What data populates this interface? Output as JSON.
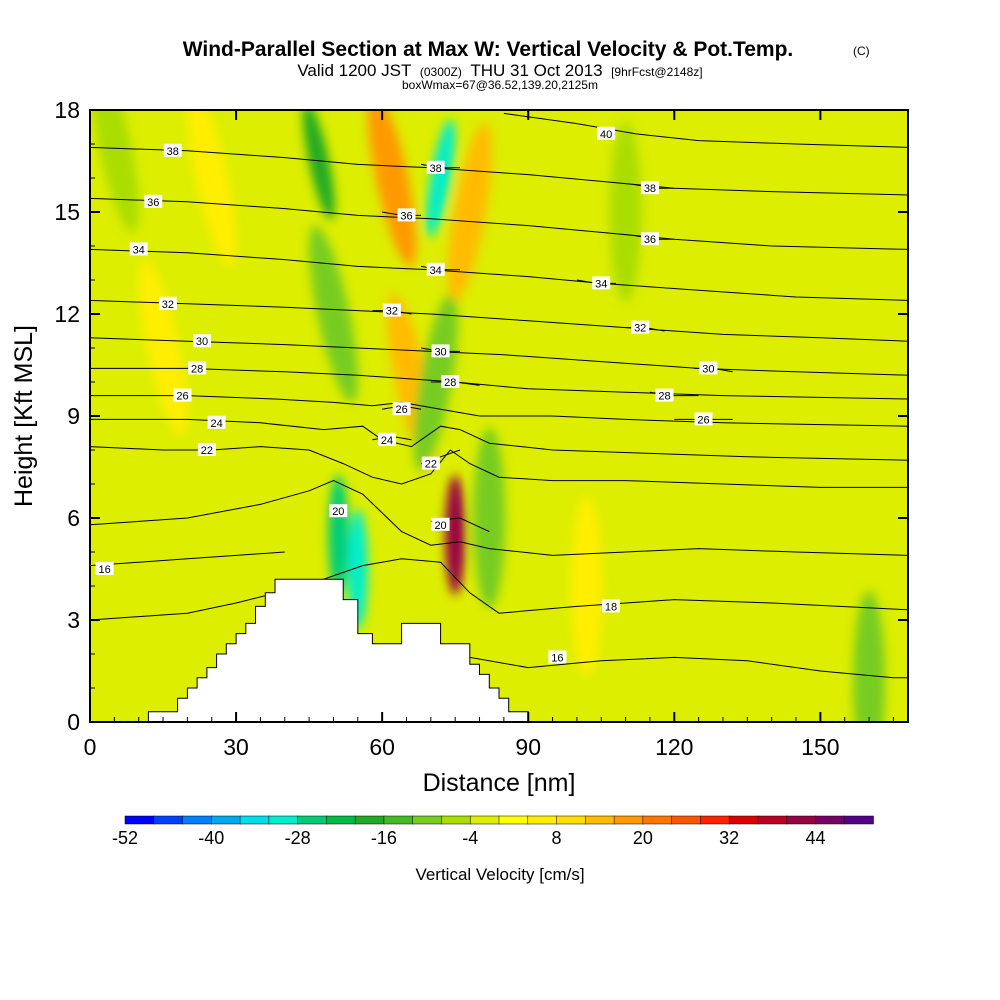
{
  "chart_data": {
    "type": "heatmap",
    "title": "Wind-Parallel Section at Max W: Vertical Velocity & Pot.Temp.",
    "title_mark": "(C)",
    "subtitle": {
      "part1": "Valid 1200 JST",
      "part2": "(0300Z)",
      "part3": "THU 31 Oct 2013",
      "part4": "[9hrFcst@2148z]"
    },
    "subtitle2": "boxWmax=67@36.52,139.20,2125m",
    "xlabel": "Distance [nm]",
    "ylabel": "Height [Kft MSL]",
    "xlim": [
      0,
      168
    ],
    "ylim": [
      0,
      18
    ],
    "x_ticks": [
      "0",
      "30",
      "60",
      "90",
      "120",
      "150"
    ],
    "x_tick_values": [
      0,
      30,
      60,
      90,
      120,
      150
    ],
    "y_ticks": [
      "0",
      "3",
      "6",
      "9",
      "12",
      "15",
      "18"
    ],
    "y_tick_values": [
      0,
      3,
      6,
      9,
      12,
      15,
      18
    ],
    "colorbar": {
      "label": "Vertical Velocity [cm/s]",
      "min": -52,
      "max": 52,
      "step": 4,
      "tick_labels": [
        "-52",
        "-40",
        "-28",
        "-16",
        "-4",
        "8",
        "20",
        "32",
        "44"
      ],
      "tick_values": [
        -52,
        -40,
        -28,
        -16,
        -4,
        8,
        20,
        32,
        44
      ],
      "colors": [
        "#0000ff",
        "#0040ff",
        "#0080ff",
        "#00aaee",
        "#00ddee",
        "#00eecc",
        "#00cc77",
        "#00bb44",
        "#22aa22",
        "#44bb22",
        "#77cc22",
        "#aadd00",
        "#ddee00",
        "#ffff00",
        "#ffee00",
        "#ffdd00",
        "#ffbb00",
        "#ff9900",
        "#ff7700",
        "#ff5500",
        "#ff2200",
        "#dd0000",
        "#bb0022",
        "#990044",
        "#770066",
        "#550088"
      ]
    },
    "vertical_velocity_features": [
      {
        "x": 47,
        "y": 16.5,
        "w": -20
      },
      {
        "x": 50,
        "y": 12,
        "w": -12
      },
      {
        "x": 51,
        "y": 5.5,
        "w": -28
      },
      {
        "x": 55,
        "y": 4.5,
        "w": -32
      },
      {
        "x": 62,
        "y": 16,
        "w": 16
      },
      {
        "x": 66,
        "y": 10,
        "w": 12
      },
      {
        "x": 72,
        "y": 16,
        "w": -32
      },
      {
        "x": 71,
        "y": 10,
        "w": -12
      },
      {
        "x": 75,
        "y": 5.5,
        "w": 40
      },
      {
        "x": 78,
        "y": 15,
        "w": 12
      },
      {
        "x": 82,
        "y": 6,
        "w": -12
      },
      {
        "x": 110,
        "y": 15,
        "w": -8
      },
      {
        "x": 25,
        "y": 16,
        "w": 8
      },
      {
        "x": 15,
        "y": 11,
        "w": 8
      },
      {
        "x": 5,
        "y": 17,
        "w": -6
      },
      {
        "x": 160,
        "y": 1.2,
        "w": -10
      },
      {
        "x": 102,
        "y": 4,
        "w": 6
      }
    ],
    "terrain_profile": [
      [
        0,
        0
      ],
      [
        12,
        0
      ],
      [
        12,
        0.3
      ],
      [
        18,
        0.3
      ],
      [
        18,
        0.7
      ],
      [
        20,
        0.7
      ],
      [
        20,
        1.0
      ],
      [
        22,
        1.0
      ],
      [
        22,
        1.3
      ],
      [
        24,
        1.3
      ],
      [
        24,
        1.6
      ],
      [
        26,
        1.6
      ],
      [
        26,
        2.0
      ],
      [
        28,
        2.0
      ],
      [
        28,
        2.3
      ],
      [
        30,
        2.3
      ],
      [
        30,
        2.6
      ],
      [
        32,
        2.6
      ],
      [
        32,
        2.9
      ],
      [
        34,
        2.9
      ],
      [
        34,
        3.4
      ],
      [
        36,
        3.4
      ],
      [
        36,
        3.8
      ],
      [
        38,
        3.8
      ],
      [
        38,
        4.2
      ],
      [
        52,
        4.2
      ],
      [
        52,
        3.6
      ],
      [
        55,
        3.6
      ],
      [
        55,
        2.6
      ],
      [
        58,
        2.6
      ],
      [
        58,
        2.3
      ],
      [
        64,
        2.3
      ],
      [
        64,
        2.9
      ],
      [
        72,
        2.9
      ],
      [
        72,
        2.3
      ],
      [
        78,
        2.3
      ],
      [
        78,
        1.7
      ],
      [
        80,
        1.7
      ],
      [
        80,
        1.4
      ],
      [
        82,
        1.4
      ],
      [
        82,
        1.0
      ],
      [
        84,
        1.0
      ],
      [
        84,
        0.7
      ],
      [
        86,
        0.7
      ],
      [
        86,
        0.3
      ],
      [
        90,
        0.3
      ],
      [
        90,
        0.0
      ],
      [
        168,
        0
      ]
    ],
    "theta_contours": [
      {
        "label": "16",
        "pts": [
          [
            0,
            4.6
          ],
          [
            20,
            4.8
          ],
          [
            30,
            4.9
          ],
          [
            40,
            5.0
          ]
        ],
        "lx": 3,
        "ly": 4.5
      },
      {
        "label": "16",
        "pts": [
          [
            78,
            1.9
          ],
          [
            90,
            1.6
          ],
          [
            105,
            1.8
          ],
          [
            120,
            1.9
          ],
          [
            135,
            1.8
          ],
          [
            150,
            1.5
          ],
          [
            165,
            1.3
          ],
          [
            168,
            1.3
          ]
        ],
        "lx": 96,
        "ly": 1.9
      },
      {
        "label": "18",
        "pts": [
          [
            0,
            3.0
          ],
          [
            20,
            3.2
          ],
          [
            30,
            3.5
          ],
          [
            44,
            4.0
          ],
          [
            56,
            4.6
          ],
          [
            64,
            4.8
          ],
          [
            72,
            4.7
          ],
          [
            78,
            3.8
          ],
          [
            84,
            3.2
          ],
          [
            100,
            3.4
          ],
          [
            120,
            3.6
          ],
          [
            140,
            3.5
          ],
          [
            168,
            3.3
          ]
        ],
        "lx": 107,
        "ly": 3.4
      },
      {
        "label": "20",
        "pts": [
          [
            0,
            5.8
          ],
          [
            20,
            6.0
          ],
          [
            35,
            6.4
          ],
          [
            45,
            6.8
          ],
          [
            50,
            7.1
          ],
          [
            56,
            6.7
          ],
          [
            64,
            5.6
          ],
          [
            70,
            5.2
          ],
          [
            76,
            5.3
          ],
          [
            82,
            5.1
          ],
          [
            95,
            4.9
          ],
          [
            110,
            5.0
          ],
          [
            125,
            5.1
          ],
          [
            145,
            5.0
          ],
          [
            168,
            4.9
          ]
        ],
        "lx": 51,
        "ly": 6.2
      },
      {
        "label": "20",
        "pts": [
          [
            70,
            5.9
          ],
          [
            76,
            6.0
          ],
          [
            82,
            5.6
          ]
        ],
        "lx": 72,
        "ly": 5.8
      },
      {
        "label": "22",
        "pts": [
          [
            0,
            8.1
          ],
          [
            15,
            8.0
          ],
          [
            25,
            8.0
          ],
          [
            35,
            8.1
          ],
          [
            45,
            8.0
          ],
          [
            52,
            7.6
          ],
          [
            58,
            7.2
          ],
          [
            64,
            7.0
          ],
          [
            70,
            7.3
          ],
          [
            74,
            8.0
          ],
          [
            78,
            7.6
          ],
          [
            84,
            7.2
          ],
          [
            95,
            7.1
          ],
          [
            110,
            7.1
          ],
          [
            130,
            7.0
          ],
          [
            150,
            6.9
          ],
          [
            168,
            6.9
          ]
        ],
        "lx": 24,
        "ly": 8.0
      },
      {
        "label": "22",
        "pts": [
          [
            68,
            7.6
          ],
          [
            72,
            7.8
          ],
          [
            76,
            8.0
          ]
        ],
        "lx": 70,
        "ly": 7.6
      },
      {
        "label": "24",
        "pts": [
          [
            0,
            8.9
          ],
          [
            20,
            8.9
          ],
          [
            35,
            8.8
          ],
          [
            48,
            8.6
          ],
          [
            56,
            8.7
          ],
          [
            60,
            8.3
          ],
          [
            66,
            8.1
          ],
          [
            72,
            8.7
          ],
          [
            76,
            8.6
          ],
          [
            82,
            8.2
          ],
          [
            95,
            8.0
          ],
          [
            115,
            7.9
          ],
          [
            135,
            7.8
          ],
          [
            168,
            7.7
          ]
        ],
        "lx": 26,
        "ly": 8.8
      },
      {
        "label": "24",
        "pts": [
          [
            58,
            8.3
          ],
          [
            62,
            8.4
          ],
          [
            66,
            8.3
          ]
        ],
        "lx": 61,
        "ly": 8.3
      },
      {
        "label": "26",
        "pts": [
          [
            0,
            9.6
          ],
          [
            20,
            9.6
          ],
          [
            38,
            9.5
          ],
          [
            50,
            9.4
          ],
          [
            58,
            9.3
          ],
          [
            64,
            9.4
          ],
          [
            72,
            9.2
          ],
          [
            80,
            9.0
          ],
          [
            95,
            9.0
          ],
          [
            110,
            8.9
          ],
          [
            130,
            8.8
          ],
          [
            168,
            8.7
          ]
        ],
        "lx": 19,
        "ly": 9.6
      },
      {
        "label": "26",
        "pts": [
          [
            60,
            9.2
          ],
          [
            64,
            9.3
          ],
          [
            68,
            9.2
          ]
        ],
        "lx": 64,
        "ly": 9.2
      },
      {
        "label": "26",
        "pts": [
          [
            120,
            8.9
          ],
          [
            126,
            8.9
          ],
          [
            132,
            8.9
          ]
        ],
        "lx": 126,
        "ly": 8.9
      },
      {
        "label": "28",
        "pts": [
          [
            0,
            10.4
          ],
          [
            20,
            10.4
          ],
          [
            40,
            10.3
          ],
          [
            55,
            10.2
          ],
          [
            65,
            10.1
          ],
          [
            75,
            10.0
          ],
          [
            90,
            9.8
          ],
          [
            110,
            9.7
          ],
          [
            130,
            9.6
          ],
          [
            168,
            9.5
          ]
        ],
        "lx": 22,
        "ly": 10.4
      },
      {
        "label": "28",
        "pts": [
          [
            70,
            10.0
          ],
          [
            75,
            10.0
          ],
          [
            80,
            9.9
          ]
        ],
        "lx": 74,
        "ly": 10.0
      },
      {
        "label": "28",
        "pts": [
          [
            115,
            9.7
          ],
          [
            120,
            9.6
          ],
          [
            125,
            9.6
          ]
        ],
        "lx": 118,
        "ly": 9.6
      },
      {
        "label": "30",
        "pts": [
          [
            0,
            11.3
          ],
          [
            20,
            11.2
          ],
          [
            40,
            11.1
          ],
          [
            55,
            11.0
          ],
          [
            70,
            10.9
          ],
          [
            85,
            10.8
          ],
          [
            105,
            10.6
          ],
          [
            125,
            10.4
          ],
          [
            145,
            10.3
          ],
          [
            168,
            10.2
          ]
        ],
        "lx": 23,
        "ly": 11.2
      },
      {
        "label": "30",
        "pts": [
          [
            68,
            11.0
          ],
          [
            72,
            10.9
          ],
          [
            76,
            10.9
          ]
        ],
        "lx": 72,
        "ly": 10.9
      },
      {
        "label": "30",
        "pts": [
          [
            124,
            10.4
          ],
          [
            128,
            10.4
          ],
          [
            132,
            10.3
          ]
        ],
        "lx": 127,
        "ly": 10.4
      },
      {
        "label": "32",
        "pts": [
          [
            0,
            12.4
          ],
          [
            20,
            12.3
          ],
          [
            40,
            12.2
          ],
          [
            55,
            12.1
          ],
          [
            70,
            12.0
          ],
          [
            90,
            11.8
          ],
          [
            110,
            11.6
          ],
          [
            130,
            11.4
          ],
          [
            150,
            11.3
          ],
          [
            168,
            11.2
          ]
        ],
        "lx": 16,
        "ly": 12.3
      },
      {
        "label": "32",
        "pts": [
          [
            58,
            12.1
          ],
          [
            62,
            12.1
          ],
          [
            66,
            12.0
          ]
        ],
        "lx": 62,
        "ly": 12.1
      },
      {
        "label": "32",
        "pts": [
          [
            110,
            11.6
          ],
          [
            114,
            11.6
          ],
          [
            118,
            11.5
          ]
        ],
        "lx": 113,
        "ly": 11.6
      },
      {
        "label": "34",
        "pts": [
          [
            0,
            13.9
          ],
          [
            20,
            13.8
          ],
          [
            40,
            13.6
          ],
          [
            55,
            13.4
          ],
          [
            70,
            13.3
          ],
          [
            90,
            13.1
          ],
          [
            105,
            12.9
          ],
          [
            125,
            12.7
          ],
          [
            145,
            12.5
          ],
          [
            168,
            12.4
          ]
        ],
        "lx": 10,
        "ly": 13.9
      },
      {
        "label": "34",
        "pts": [
          [
            68,
            13.4
          ],
          [
            72,
            13.3
          ],
          [
            76,
            13.3
          ]
        ],
        "lx": 71,
        "ly": 13.3
      },
      {
        "label": "34",
        "pts": [
          [
            100,
            13.0
          ],
          [
            104,
            12.9
          ],
          [
            108,
            12.9
          ]
        ],
        "lx": 105,
        "ly": 12.9
      },
      {
        "label": "36",
        "pts": [
          [
            0,
            15.4
          ],
          [
            20,
            15.3
          ],
          [
            40,
            15.1
          ],
          [
            55,
            14.9
          ],
          [
            70,
            14.8
          ],
          [
            90,
            14.6
          ],
          [
            105,
            14.4
          ],
          [
            120,
            14.2
          ],
          [
            140,
            14.0
          ],
          [
            168,
            13.9
          ]
        ],
        "lx": 13,
        "ly": 15.3
      },
      {
        "label": "36",
        "pts": [
          [
            60,
            15.0
          ],
          [
            64,
            14.9
          ],
          [
            68,
            14.9
          ]
        ],
        "lx": 65,
        "ly": 14.9
      },
      {
        "label": "36",
        "pts": [
          [
            112,
            14.3
          ],
          [
            116,
            14.2
          ],
          [
            120,
            14.2
          ]
        ],
        "lx": 115,
        "ly": 14.2
      },
      {
        "label": "38",
        "pts": [
          [
            0,
            16.9
          ],
          [
            20,
            16.8
          ],
          [
            40,
            16.6
          ],
          [
            55,
            16.4
          ],
          [
            70,
            16.3
          ],
          [
            90,
            16.1
          ],
          [
            105,
            15.9
          ],
          [
            120,
            15.7
          ],
          [
            140,
            15.6
          ],
          [
            168,
            15.5
          ]
        ],
        "lx": 17,
        "ly": 16.8
      },
      {
        "label": "38",
        "pts": [
          [
            68,
            16.4
          ],
          [
            72,
            16.3
          ],
          [
            76,
            16.3
          ]
        ],
        "lx": 71,
        "ly": 16.3
      },
      {
        "label": "38",
        "pts": [
          [
            112,
            15.8
          ],
          [
            116,
            15.7
          ],
          [
            120,
            15.7
          ]
        ],
        "lx": 115,
        "ly": 15.7
      },
      {
        "label": "40",
        "pts": [
          [
            85,
            17.9
          ],
          [
            100,
            17.6
          ],
          [
            112,
            17.3
          ],
          [
            125,
            17.1
          ],
          [
            145,
            17.0
          ],
          [
            168,
            16.9
          ]
        ],
        "lx": 106,
        "ly": 17.3
      }
    ]
  }
}
